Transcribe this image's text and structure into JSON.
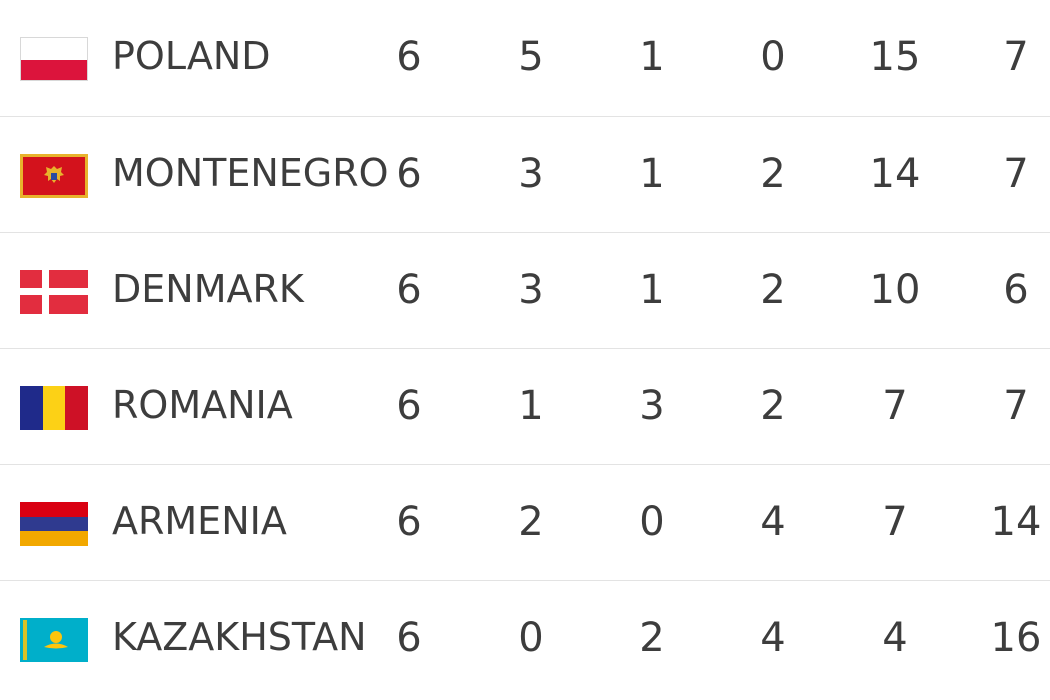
{
  "standings": {
    "rows": [
      {
        "country": "POLAND",
        "flag": "poland-flag",
        "values": [
          "6",
          "5",
          "1",
          "0",
          "15",
          "7"
        ]
      },
      {
        "country": "MONTENEGRO",
        "flag": "montenegro-flag",
        "values": [
          "6",
          "3",
          "1",
          "2",
          "14",
          "7"
        ]
      },
      {
        "country": "DENMARK",
        "flag": "denmark-flag",
        "values": [
          "6",
          "3",
          "1",
          "2",
          "10",
          "6"
        ]
      },
      {
        "country": "ROMANIA",
        "flag": "romania-flag",
        "values": [
          "6",
          "1",
          "3",
          "2",
          "7",
          "7"
        ]
      },
      {
        "country": "ARMENIA",
        "flag": "armenia-flag",
        "values": [
          "6",
          "2",
          "0",
          "4",
          "7",
          "14"
        ]
      },
      {
        "country": "KAZAKHSTAN",
        "flag": "kazakhstan-flag",
        "values": [
          "6",
          "0",
          "2",
          "4",
          "4",
          "16"
        ]
      }
    ]
  },
  "colors": {
    "text": "#3d3d3d",
    "divider": "#e3e3e3",
    "poland_red": "#dc143c",
    "montenegro_red": "#d3121c",
    "montenegro_gold": "#e8b32c",
    "denmark_red": "#e22d3f",
    "romania_blue": "#1f2a8a",
    "romania_yellow": "#fcd116",
    "romania_red": "#ce1126",
    "armenia_red": "#d90012",
    "armenia_blue": "#2f3a8f",
    "armenia_orange": "#f2a800",
    "kazakhstan_blue": "#00afca",
    "kazakhstan_gold": "#fec50c"
  }
}
